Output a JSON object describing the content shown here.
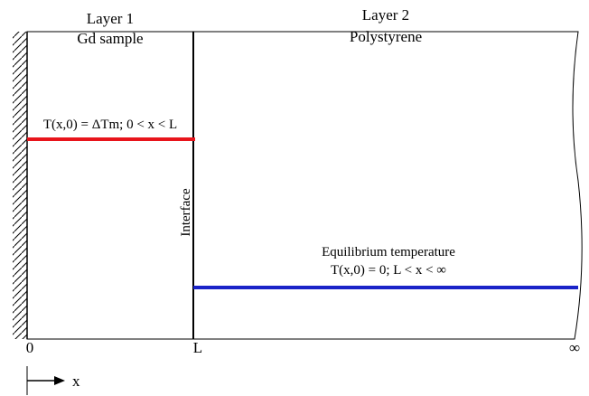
{
  "layers": [
    {
      "label": "Layer 1",
      "material": "Gd sample"
    },
    {
      "label": "Layer 2",
      "material": "Polystyrene"
    }
  ],
  "initial_condition_1": "T(x,0) = ΔTm; 0 < x < L",
  "interface": "Interface",
  "initial_condition_2": {
    "title": "Equilibrium temperature",
    "condition": "T(x,0) = 0; L < x < ∞"
  },
  "axis": {
    "origin": "0",
    "interface_pos": "L",
    "infinity": "∞",
    "x": "x"
  }
}
